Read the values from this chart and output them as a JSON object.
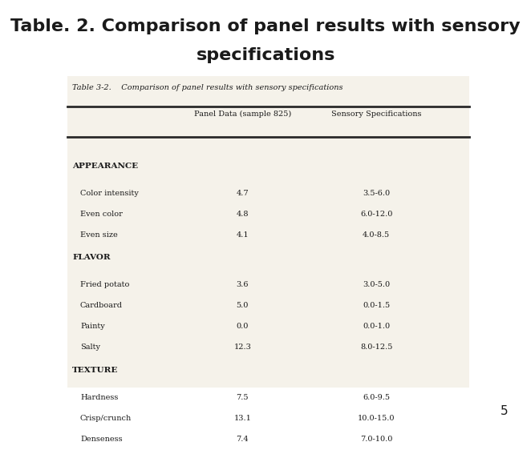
{
  "title_line1": "Table. 2. Comparison of panel results with sensory",
  "title_line2": "specifications",
  "page_number": "5",
  "table_title": "Table 3-2.    Comparison of panel results with sensory specifications",
  "col_headers": [
    "Panel Data (sample 825)",
    "Sensory Specifications"
  ],
  "sections": [
    {
      "section_name": "APPEARANCE",
      "rows": [
        [
          "Color intensity",
          "4.7",
          "3.5-6.0"
        ],
        [
          "Even color",
          "4.8",
          "6.0-12.0"
        ],
        [
          "Even size",
          "4.1",
          "4.0-8.5"
        ]
      ]
    },
    {
      "section_name": "FLAVOR",
      "rows": [
        [
          "Fried potato",
          "3.6",
          "3.0-5.0"
        ],
        [
          "Cardboard",
          "5.0",
          "0.0-1.5"
        ],
        [
          "Painty",
          "0.0",
          "0.0-1.0"
        ],
        [
          "Salty",
          "12.3",
          "8.0-12.5"
        ]
      ]
    },
    {
      "section_name": "TEXTURE",
      "rows": [
        [
          "Hardness",
          "7.5",
          "6.0-9.5"
        ],
        [
          "Crisp/crunch",
          "13.1",
          "10.0-15.0"
        ],
        [
          "Denseness",
          "7.4",
          "7.0-10.0"
        ]
      ]
    }
  ],
  "outer_bg": "#ffffff",
  "table_bg": "#f5f2ea",
  "line_color": "#2a2a2a",
  "text_color": "#1a1a1a",
  "title_fontsize": 16,
  "table_title_fontsize": 7,
  "header_fontsize": 7,
  "body_fontsize": 7,
  "section_fontsize": 7.5,
  "page_fontsize": 11
}
